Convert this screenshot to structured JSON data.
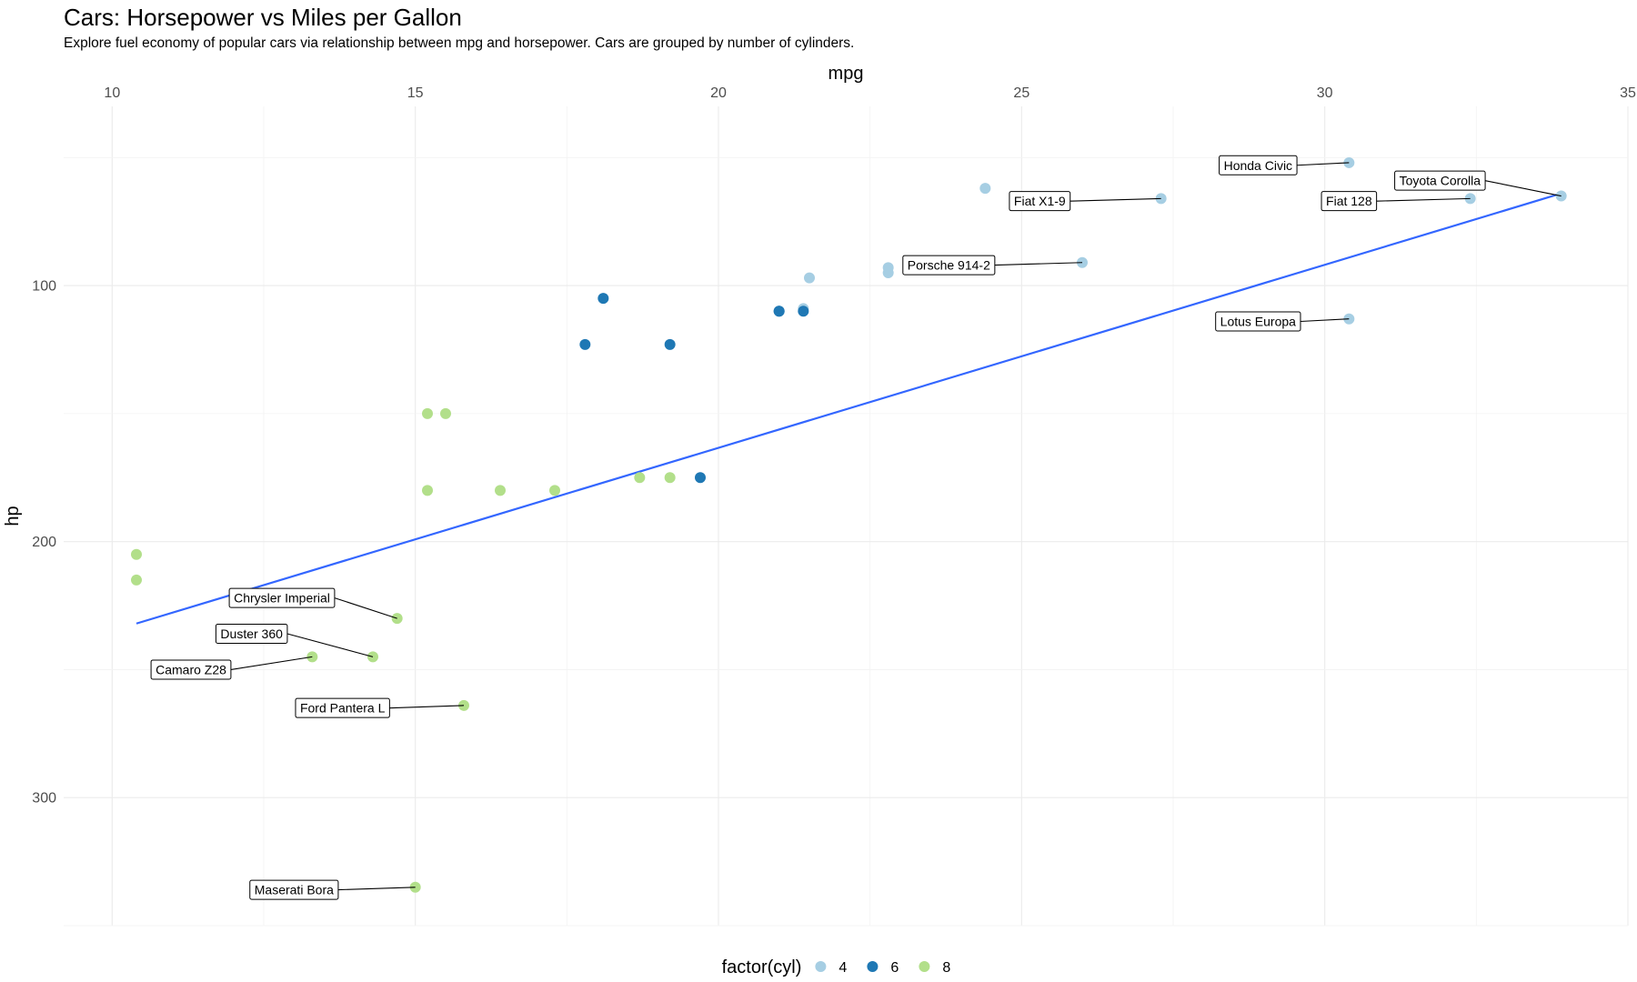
{
  "title": "Cars: Horsepower vs Miles per Gallon",
  "subtitle": "Explore fuel economy of popular cars via relationship between mpg and horsepower. Cars are grouped by number of cylinders.",
  "chart_data": {
    "type": "scatter",
    "xlabel": "mpg",
    "ylabel": "hp",
    "x_axis_position": "top",
    "y_axis_reversed": true,
    "xlim": [
      9.2,
      35
    ],
    "ylim": [
      30,
      350
    ],
    "x_ticks": [
      "10",
      "15",
      "20",
      "25",
      "30",
      "35"
    ],
    "y_ticks": [
      "100",
      "200",
      "300"
    ],
    "grid": true,
    "legend_title": "factor(cyl)",
    "legend_position": "bottom",
    "series": [
      {
        "name": "4",
        "color": "#a6cee3",
        "points": [
          {
            "x": 22.8,
            "y": 93
          },
          {
            "x": 24.4,
            "y": 62
          },
          {
            "x": 22.8,
            "y": 95
          },
          {
            "x": 32.4,
            "y": 66
          },
          {
            "x": 30.4,
            "y": 52
          },
          {
            "x": 33.9,
            "y": 65
          },
          {
            "x": 21.5,
            "y": 97
          },
          {
            "x": 27.3,
            "y": 66
          },
          {
            "x": 26.0,
            "y": 91
          },
          {
            "x": 30.4,
            "y": 113
          },
          {
            "x": 21.4,
            "y": 109
          }
        ]
      },
      {
        "name": "6",
        "color": "#1f78b4",
        "points": [
          {
            "x": 21.0,
            "y": 110
          },
          {
            "x": 21.0,
            "y": 110
          },
          {
            "x": 21.4,
            "y": 110
          },
          {
            "x": 18.1,
            "y": 105
          },
          {
            "x": 19.2,
            "y": 123
          },
          {
            "x": 17.8,
            "y": 123
          },
          {
            "x": 19.7,
            "y": 175
          }
        ]
      },
      {
        "name": "8",
        "color": "#b2df8a",
        "points": [
          {
            "x": 18.7,
            "y": 175
          },
          {
            "x": 14.3,
            "y": 245
          },
          {
            "x": 16.4,
            "y": 180
          },
          {
            "x": 17.3,
            "y": 180
          },
          {
            "x": 15.2,
            "y": 180
          },
          {
            "x": 10.4,
            "y": 205
          },
          {
            "x": 10.4,
            "y": 215
          },
          {
            "x": 14.7,
            "y": 230
          },
          {
            "x": 15.5,
            "y": 150
          },
          {
            "x": 15.2,
            "y": 150
          },
          {
            "x": 13.3,
            "y": 245
          },
          {
            "x": 19.2,
            "y": 175
          },
          {
            "x": 15.8,
            "y": 264
          },
          {
            "x": 15.0,
            "y": 335
          }
        ]
      }
    ],
    "trend_line": {
      "color": "#3366ff",
      "x": [
        10.4,
        33.9
      ],
      "y": [
        232,
        64
      ]
    },
    "annotations": [
      {
        "label": "Honda Civic",
        "x": 30.4,
        "y": 52,
        "label_x": 28.9,
        "label_y": 53
      },
      {
        "label": "Toyota Corolla",
        "x": 33.9,
        "y": 65,
        "label_x": 31.9,
        "label_y": 59
      },
      {
        "label": "Fiat X1-9",
        "x": 27.3,
        "y": 66,
        "label_x": 25.3,
        "label_y": 67
      },
      {
        "label": "Fiat 128",
        "x": 32.4,
        "y": 66,
        "label_x": 30.4,
        "label_y": 67
      },
      {
        "label": "Porsche 914-2",
        "x": 26.0,
        "y": 91,
        "label_x": 23.8,
        "label_y": 92
      },
      {
        "label": "Lotus Europa",
        "x": 30.4,
        "y": 113,
        "label_x": 28.9,
        "label_y": 114
      },
      {
        "label": "Chrysler Imperial",
        "x": 14.7,
        "y": 230,
        "label_x": 12.8,
        "label_y": 222
      },
      {
        "label": "Duster 360",
        "x": 14.3,
        "y": 245,
        "label_x": 12.3,
        "label_y": 236
      },
      {
        "label": "Camaro Z28",
        "x": 13.3,
        "y": 245,
        "label_x": 11.3,
        "label_y": 250
      },
      {
        "label": "Ford Pantera L",
        "x": 15.8,
        "y": 264,
        "label_x": 13.8,
        "label_y": 265
      },
      {
        "label": "Maserati Bora",
        "x": 15.0,
        "y": 335,
        "label_x": 13.0,
        "label_y": 336
      }
    ]
  }
}
